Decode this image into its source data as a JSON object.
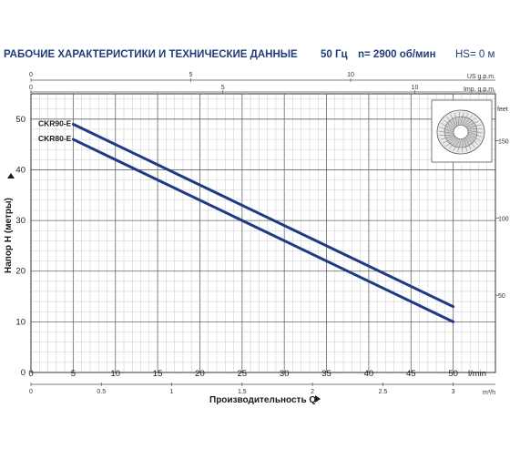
{
  "header": {
    "title": "РАБОЧИЕ ХАРАКТЕРИСТИКИ И ТЕХНИЧЕСКИЕ ДАННЫЕ",
    "frequency": "50 Гц",
    "speed": "n= 2900 об/мин",
    "hs": "HS= 0 м"
  },
  "chart_data": {
    "type": "line",
    "xlabel": "Производительность Q",
    "ylabel": "Напор H (метры)",
    "x_unit": "l/min",
    "xlim": [
      0,
      55
    ],
    "ylim": [
      0,
      55
    ],
    "x_ticks": [
      0,
      5,
      10,
      15,
      20,
      25,
      30,
      35,
      40,
      45,
      50
    ],
    "y_ticks": [
      0,
      10,
      20,
      30,
      40,
      50
    ],
    "grid": true,
    "series": [
      {
        "name": "CKR90-E",
        "x": [
          5,
          50
        ],
        "y": [
          49,
          13
        ]
      },
      {
        "name": "CKR80-E",
        "x": [
          5,
          50
        ],
        "y": [
          46,
          10
        ]
      }
    ],
    "secondary_axes": {
      "us_gpm": {
        "unit": "US g.p.m.",
        "ticks": [
          0,
          5,
          10
        ],
        "factor": 0.264172
      },
      "imp_gpm": {
        "unit": "Imp. g.p.m.",
        "ticks": [
          0,
          5,
          10
        ],
        "factor": 0.219969
      },
      "m3h": {
        "unit": "m³/h",
        "ticks": [
          0,
          0.5,
          1,
          1.5,
          2,
          2.5,
          3
        ],
        "factor": 0.06
      },
      "feet": {
        "unit": "feet",
        "ticks": [
          50,
          100,
          150
        ],
        "factor": 3.28084
      }
    }
  },
  "image_icon": "pump-impeller-icon"
}
